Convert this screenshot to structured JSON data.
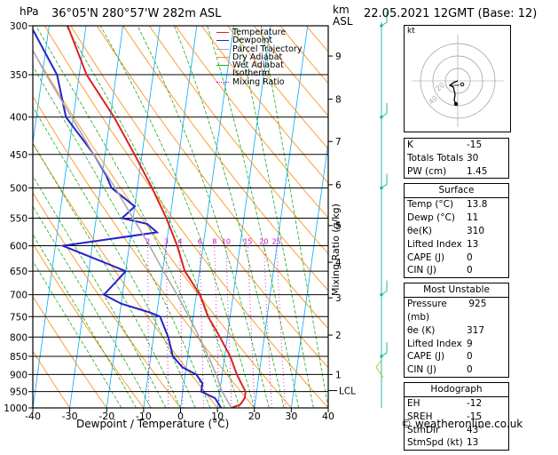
{
  "header": {
    "location": "36°05'N 280°57'W 282m ASL",
    "datetime": "22.05.2021 12GMT (Base: 12)",
    "pressure_unit": "hPa",
    "km_unit": "km",
    "asl_label": "ASL"
  },
  "chart_data": {
    "type": "line",
    "title": "Skew-T log-P diagram",
    "xlabel": "Dewpoint / Temperature (°C)",
    "ylabel_right": "Mixing Ratio (g/kg)",
    "xlim": [
      -40,
      40
    ],
    "ylim": [
      1000,
      300
    ],
    "x_ticks": [
      "-40",
      "-30",
      "-20",
      "-10",
      "0",
      "10",
      "20",
      "30",
      "40"
    ],
    "pressure_levels": [
      300,
      350,
      400,
      450,
      500,
      550,
      600,
      650,
      700,
      750,
      800,
      850,
      900,
      950,
      1000
    ],
    "km_ticks": [
      {
        "km": "1",
        "p": 900
      },
      {
        "km": "2",
        "p": 795
      },
      {
        "km": "3",
        "p": 707
      },
      {
        "km": "4",
        "p": 632
      },
      {
        "km": "5",
        "p": 563
      },
      {
        "km": "6",
        "p": 495
      },
      {
        "km": "7",
        "p": 432
      },
      {
        "km": "8",
        "p": 378
      },
      {
        "km": "9",
        "p": 330
      }
    ],
    "lcl_label": "LCL",
    "lcl_pressure": 947,
    "mixing_ratio_labels": [
      "2",
      "3",
      "4",
      "6",
      "8",
      "10",
      "15",
      "20",
      "25"
    ],
    "mixing_ratio_values": [
      2,
      3,
      4,
      6,
      8,
      10,
      15,
      20,
      25
    ],
    "legend": [
      "Temperature",
      "Dewpoint",
      "Parcel Trajectory",
      "Dry Adiabat",
      "Wet Adiabat",
      "Isotherm",
      "Mixing Ratio"
    ],
    "series": [
      {
        "name": "Temperature",
        "color": "#dd2222",
        "points": [
          [
            1000,
            13.8
          ],
          [
            990,
            16
          ],
          [
            970,
            17
          ],
          [
            950,
            17
          ],
          [
            925,
            15.5
          ],
          [
            900,
            14
          ],
          [
            850,
            11.5
          ],
          [
            800,
            8
          ],
          [
            750,
            4
          ],
          [
            700,
            1
          ],
          [
            650,
            -4
          ],
          [
            600,
            -7
          ],
          [
            550,
            -11
          ],
          [
            500,
            -16
          ],
          [
            450,
            -22
          ],
          [
            400,
            -29
          ],
          [
            350,
            -38
          ],
          [
            300,
            -45
          ]
        ]
      },
      {
        "name": "Dewpoint",
        "color": "#2222cc",
        "points": [
          [
            1000,
            11
          ],
          [
            970,
            9
          ],
          [
            950,
            5
          ],
          [
            925,
            5
          ],
          [
            900,
            3
          ],
          [
            880,
            -1
          ],
          [
            850,
            -4
          ],
          [
            800,
            -6
          ],
          [
            750,
            -9
          ],
          [
            740,
            -12
          ],
          [
            720,
            -20
          ],
          [
            700,
            -25
          ],
          [
            660,
            -21
          ],
          [
            650,
            -20
          ],
          [
            600,
            -38
          ],
          [
            575,
            -13
          ],
          [
            560,
            -16
          ],
          [
            550,
            -23
          ],
          [
            530,
            -20
          ],
          [
            500,
            -27
          ],
          [
            480,
            -29
          ],
          [
            450,
            -33
          ],
          [
            400,
            -42
          ],
          [
            350,
            -46
          ],
          [
            300,
            -55
          ]
        ]
      },
      {
        "name": "Parcel Trajectory",
        "color": "#aaaaaa",
        "points": [
          [
            1000,
            13.8
          ],
          [
            947,
            10.5
          ],
          [
            900,
            8.4
          ],
          [
            850,
            5.6
          ],
          [
            800,
            2.4
          ],
          [
            750,
            -1.2
          ],
          [
            700,
            -5.2
          ],
          [
            650,
            -9.8
          ],
          [
            600,
            -14.5
          ],
          [
            550,
            -20
          ],
          [
            500,
            -26
          ],
          [
            450,
            -33
          ],
          [
            400,
            -40.5
          ],
          [
            350,
            -49
          ],
          [
            300,
            -58
          ]
        ]
      }
    ]
  },
  "wind_barbs": {
    "color": "#22bbaa",
    "pressures": [
      300,
      400,
      500,
      700,
      850
    ]
  },
  "hodograph": {
    "label": "kt",
    "ring_labels": [
      "20",
      "40"
    ],
    "storm_dir_label": "43°"
  },
  "indices": {
    "K": {
      "label": "K",
      "value": "-15"
    },
    "TT": {
      "label": "Totals Totals",
      "value": "30"
    },
    "PW": {
      "label": "PW (cm)",
      "value": "1.45"
    }
  },
  "surface": {
    "title": "Surface",
    "rows": [
      {
        "label": "Temp (°C)",
        "value": "13.8"
      },
      {
        "label": "Dewp (°C)",
        "value": "11"
      },
      {
        "label": "θe(K)",
        "value": "310"
      },
      {
        "label": "Lifted Index",
        "value": "13"
      },
      {
        "label": "CAPE (J)",
        "value": "0"
      },
      {
        "label": "CIN (J)",
        "value": "0"
      }
    ]
  },
  "most_unstable": {
    "title": "Most Unstable",
    "rows": [
      {
        "label": "Pressure (mb)",
        "value": "925"
      },
      {
        "label": "θe (K)",
        "value": "317"
      },
      {
        "label": "Lifted Index",
        "value": "9"
      },
      {
        "label": "CAPE (J)",
        "value": "0"
      },
      {
        "label": "CIN (J)",
        "value": "0"
      }
    ]
  },
  "hodo_box": {
    "title": "Hodograph",
    "rows": [
      {
        "label": "EH",
        "value": "-12"
      },
      {
        "label": "SREH",
        "value": "-15"
      },
      {
        "label": "StmDir",
        "value": "43°"
      },
      {
        "label": "StmSpd (kt)",
        "value": "13"
      }
    ]
  },
  "footer": "© weatheronline.co.uk",
  "colors": {
    "isotherm": "#00aaff",
    "dry_adiabat": "#ff8800",
    "wet_adiabat": "#22aa22",
    "mixing_ratio": "#cc00cc",
    "parcel": "#aaaaaa",
    "temperature": "#dd2222",
    "dewpoint": "#2222cc"
  }
}
